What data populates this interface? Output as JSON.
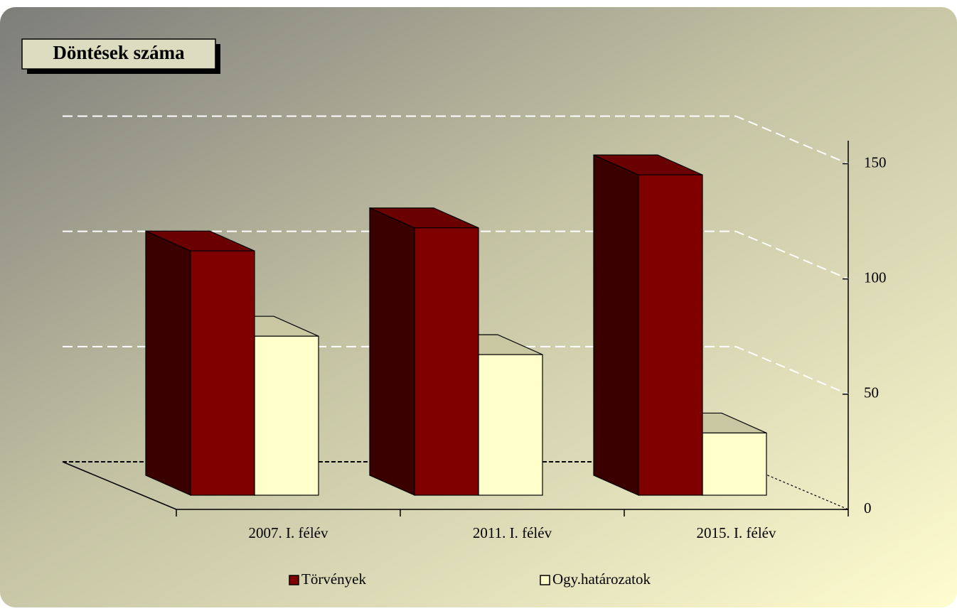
{
  "chart_data": {
    "type": "bar3d",
    "title": "Döntések száma",
    "categories": [
      "2007. I. félév",
      "2011. I. félév",
      "2015. I. félév"
    ],
    "series": [
      {
        "name": "Törvények",
        "color": "#800000",
        "values": [
          106,
          116,
          139
        ]
      },
      {
        "name": "Ogy.határozatok",
        "color": "#ffffcc",
        "values": [
          69,
          61,
          27
        ]
      }
    ],
    "ylim": [
      0,
      160
    ],
    "yticks": [
      0,
      50,
      100,
      150
    ],
    "grid": true,
    "legend": "bottom"
  }
}
